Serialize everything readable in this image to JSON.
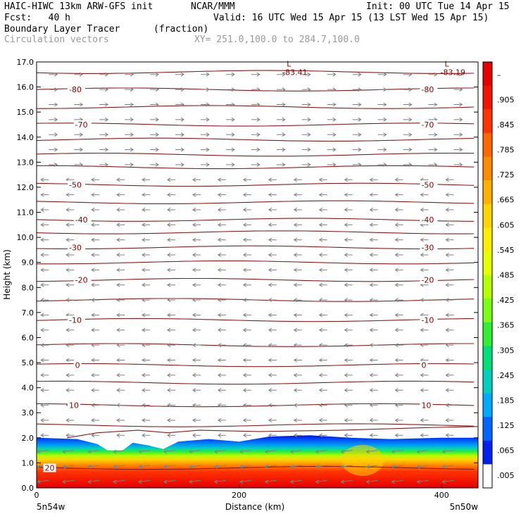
{
  "header": {
    "model": "HAIC-HIWC 13km ARW-GFS init",
    "org": "NCAR/MMM",
    "init": "Init: 00 UTC Tue 14 Apr 15",
    "fcst": "Fcst:   40 h",
    "valid": "Valid: 16 UTC Wed 15 Apr 15 (13 LST Wed 15 Apr 15)",
    "field": "Boundary Layer Tracer",
    "units": "(fraction)",
    "vectors": "Circulation vectors",
    "xy": "XY= 251.0,100.0 to 284.7,100.0"
  },
  "chart_data": {
    "type": "heatmap",
    "xlabel": "Distance (km)",
    "ylabel": "Height (km)",
    "xlim": [
      0,
      436
    ],
    "ylim": [
      0,
      17
    ],
    "x_ticks": [
      "0",
      "200",
      "400"
    ],
    "y_ticks": [
      "0.0",
      "1.0",
      "2.0",
      "3.0",
      "4.0",
      "5.0",
      "6.0",
      "7.0",
      "8.0",
      "9.0",
      "10.0",
      "11.0",
      "12.0",
      "13.0",
      "14.0",
      "15.0",
      "16.0",
      "17.0"
    ],
    "x_endpoints": {
      "left": "5n54w",
      "right": "5n50w"
    },
    "colorbar": {
      "labels": [
        "–",
        ".905",
        ".845",
        ".785",
        ".725",
        ".665",
        ".605",
        ".545",
        ".485",
        ".425",
        ".365",
        ".305",
        ".245",
        ".185",
        ".125",
        ".065",
        ".005"
      ],
      "colors": [
        "#e60000",
        "#f21400",
        "#ff3300",
        "#ff6600",
        "#ff8c00",
        "#ffb000",
        "#ffd400",
        "#ffee00",
        "#e6ff00",
        "#b4ff00",
        "#7aff14",
        "#32ef32",
        "#00df78",
        "#00cfc0",
        "#00aaff",
        "#0066ff",
        "#0022ee",
        "#ffffff"
      ]
    },
    "tracer_top_km": [
      {
        "x": 0,
        "z": 2.0
      },
      {
        "x": 40,
        "z": 1.95
      },
      {
        "x": 60,
        "z": 1.75
      },
      {
        "x": 70,
        "z": 1.5
      },
      {
        "x": 85,
        "z": 1.5
      },
      {
        "x": 95,
        "z": 1.8
      },
      {
        "x": 110,
        "z": 1.7
      },
      {
        "x": 125,
        "z": 1.55
      },
      {
        "x": 140,
        "z": 1.85
      },
      {
        "x": 170,
        "z": 1.95
      },
      {
        "x": 200,
        "z": 1.85
      },
      {
        "x": 230,
        "z": 2.05
      },
      {
        "x": 270,
        "z": 2.1
      },
      {
        "x": 310,
        "z": 2.0
      },
      {
        "x": 350,
        "z": 1.95
      },
      {
        "x": 400,
        "z": 2.0
      },
      {
        "x": 436,
        "z": 2.0
      }
    ],
    "temperature_contours": [
      {
        "label": "-80",
        "z": 15.9
      },
      {
        "label": "-70",
        "z": 14.5
      },
      {
        "label": "-50",
        "z": 12.1
      },
      {
        "label": "-40",
        "z": 10.7
      },
      {
        "label": "-30",
        "z": 9.6
      },
      {
        "label": "-20",
        "z": 8.3
      },
      {
        "label": "-10",
        "z": 6.7
      },
      {
        "label": "0",
        "z": 4.9
      },
      {
        "label": "10",
        "z": 3.3
      },
      {
        "label": "20",
        "z": 0.8
      }
    ],
    "extra_isotherms_z": [
      16.6,
      15.2,
      13.9,
      13.3,
      12.8,
      11.4,
      10.2,
      9.0,
      7.5,
      5.7,
      4.2,
      2.5
    ],
    "annotations": [
      {
        "mark": "L",
        "value": "-83.41",
        "x": 247,
        "z": 16.65
      },
      {
        "mark": "L",
        "value": "-83.19",
        "x": 403,
        "z": 16.65
      }
    ]
  }
}
